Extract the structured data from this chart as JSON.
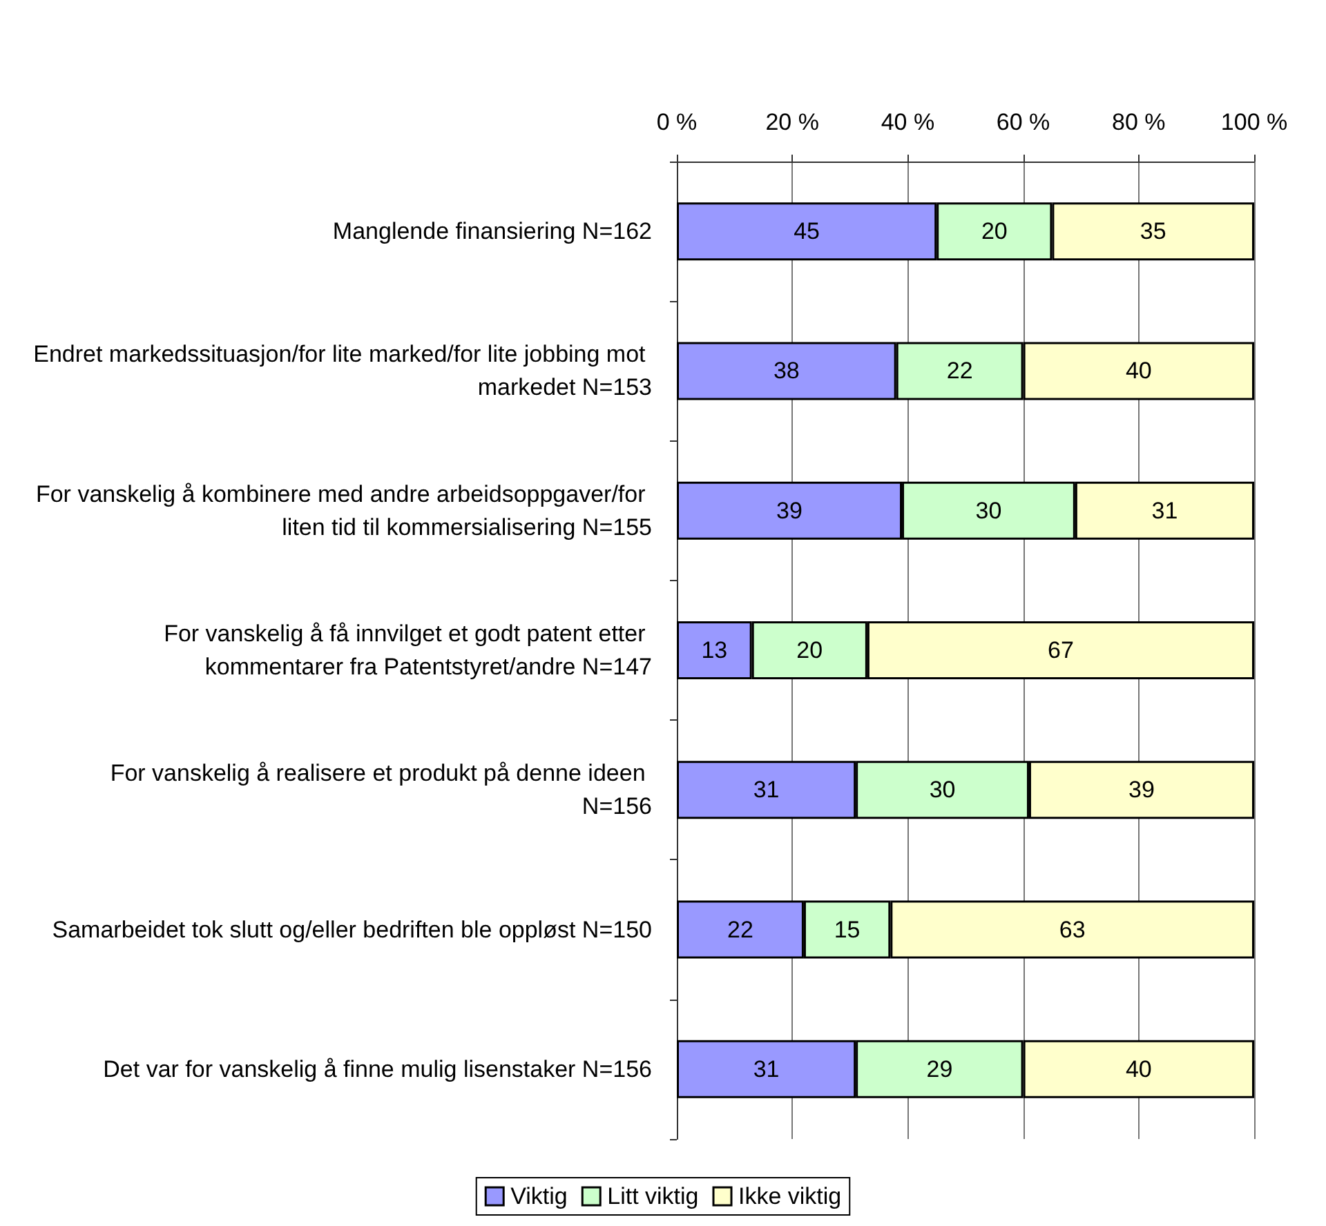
{
  "chart_data": {
    "type": "bar",
    "orientation": "horizontal",
    "stacked": true,
    "data_labels": true,
    "grid": "x",
    "legend": "bottom",
    "categories": [
      "Manglende finansiering N=162",
      "Endret markedssituasjon/for lite marked/for lite jobbing mot markedet N=153",
      "For vanskelig å kombinere med andre arbeidsoppgaver/for liten tid til kommersialisering N=155",
      "For vanskelig å få innvilget et godt patent etter kommentarer fra Patentstyret/andre N=147",
      "For vanskelig å realisere et produkt på denne ideen N=156",
      "Samarbeidet tok slutt og/eller bedriften ble oppløst N=150",
      "Det var for vanskelig å finne mulig lisenstaker N=156"
    ],
    "xlim": [
      0,
      100
    ],
    "xticks": [
      {
        "value": 0,
        "label": "0 %"
      },
      {
        "value": 20,
        "label": "20 %"
      },
      {
        "value": 40,
        "label": "40 %"
      },
      {
        "value": 60,
        "label": "60 %"
      },
      {
        "value": 80,
        "label": "80 %"
      },
      {
        "value": 100,
        "label": "100 %"
      }
    ],
    "series": [
      {
        "name": "Viktig",
        "color": "#9999ff",
        "values": [
          45,
          38,
          39,
          13,
          31,
          22,
          31
        ]
      },
      {
        "name": "Litt viktig",
        "color": "#ccffcc",
        "values": [
          20,
          22,
          30,
          20,
          30,
          15,
          29
        ]
      },
      {
        "name": "Ikke viktig",
        "color": "#ffffcc",
        "values": [
          35,
          40,
          31,
          67,
          39,
          63,
          40
        ]
      }
    ]
  }
}
